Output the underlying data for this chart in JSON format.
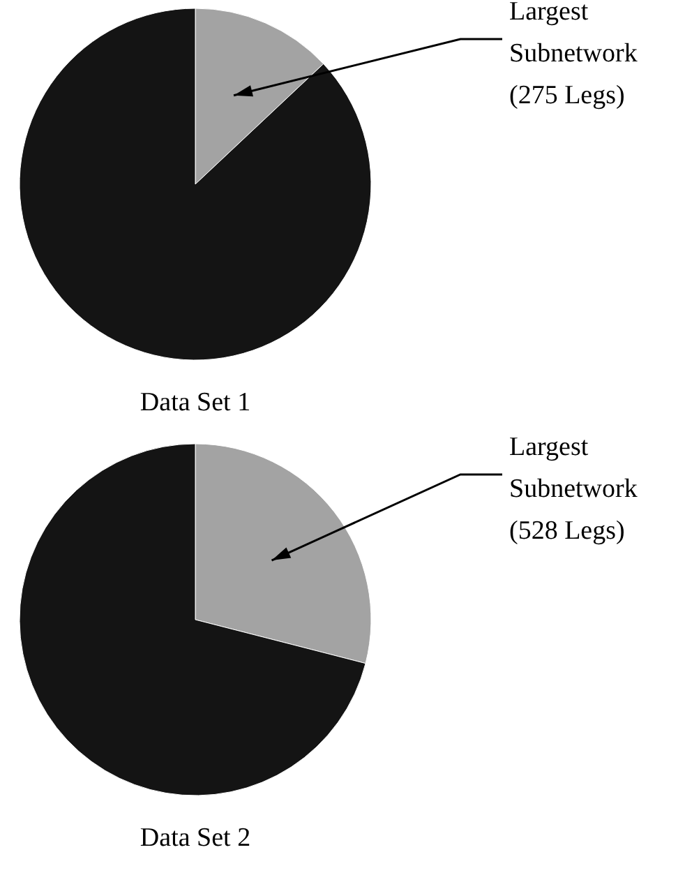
{
  "chart_data": [
    {
      "type": "pie",
      "title": "Data Set 1",
      "categories": [
        "Largest Subnetwork (275 Legs)",
        null
      ],
      "values": [
        13,
        87
      ],
      "colors": [
        "#a3a3a3",
        "#141414"
      ]
    },
    {
      "type": "pie",
      "title": "Data Set 2",
      "categories": [
        "Largest Subnetwork (528 Legs)",
        null
      ],
      "values": [
        29,
        71
      ],
      "colors": [
        "#a3a3a3",
        "#141414"
      ]
    }
  ]
}
